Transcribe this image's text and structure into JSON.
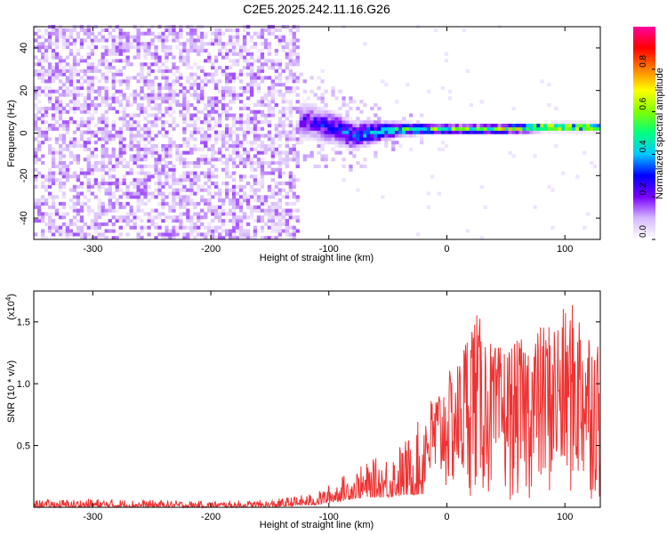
{
  "figure_title": "C2E5.2025.242.11.16.G26",
  "chart_data": [
    {
      "type": "heatmap",
      "title": "C2E5.2025.242.11.16.G26",
      "xlabel": "Height of straight line (km)",
      "ylabel": "Frequency (Hz)",
      "xlim": [
        -350,
        130
      ],
      "ylim": [
        -50,
        50
      ],
      "xticks": [
        -300,
        -200,
        -100,
        0,
        100
      ],
      "xtick_labels": [
        "-300",
        "-200",
        "-100",
        "0",
        "100"
      ],
      "yticks": [
        -40,
        -20,
        0,
        20,
        40
      ],
      "ytick_labels": [
        "-40",
        "-20",
        "0",
        "20",
        "40"
      ],
      "noise_region": {
        "x_from": -350,
        "x_to": -125,
        "description_level": "low (purple speckle)"
      },
      "signal_band": [
        {
          "x": -120,
          "f_center": 5,
          "f_halfwidth": 10,
          "amplitude": 0.25
        },
        {
          "x": -100,
          "f_center": 2,
          "f_halfwidth": 9,
          "amplitude": 0.35
        },
        {
          "x": -80,
          "f_center": -2,
          "f_halfwidth": 8,
          "amplitude": 0.4
        },
        {
          "x": -60,
          "f_center": 0,
          "f_halfwidth": 6,
          "amplitude": 0.45
        },
        {
          "x": -40,
          "f_center": 1,
          "f_halfwidth": 4,
          "amplitude": 0.55
        },
        {
          "x": -20,
          "f_center": 1,
          "f_halfwidth": 3,
          "amplitude": 0.6
        },
        {
          "x": 0,
          "f_center": 1,
          "f_halfwidth": 2.5,
          "amplitude": 0.65
        },
        {
          "x": 40,
          "f_center": 1,
          "f_halfwidth": 2.5,
          "amplitude": 0.7
        },
        {
          "x": 80,
          "f_center": 2,
          "f_halfwidth": 2.5,
          "amplitude": 0.85
        },
        {
          "x": 130,
          "f_center": 2,
          "f_halfwidth": 2.5,
          "amplitude": 0.9
        }
      ],
      "colorbar": {
        "label": "Normalized spectral amplitude",
        "range": [
          0.0,
          1.0
        ],
        "ticks": [
          0.0,
          0.2,
          0.4,
          0.6,
          0.8
        ],
        "tick_labels": [
          "0.0",
          "0.2",
          "0.4",
          "0.6",
          "0.8"
        ],
        "colors": [
          "#ffffff",
          "#d6b8ff",
          "#7a00ff",
          "#0000ff",
          "#00c8ff",
          "#00ff80",
          "#80ff00",
          "#ffff00",
          "#ff8000",
          "#ff0000",
          "#ff00a0"
        ]
      }
    },
    {
      "type": "line",
      "xlabel": "Height of straight line (km)",
      "ylabel": "SNR (10 * v/v)",
      "y_multiplier_label": "(x10",
      "y_multiplier_exp": "4",
      "y_multiplier_close": ")",
      "xlim": [
        -350,
        130
      ],
      "ylim": [
        0,
        17500
      ],
      "xticks": [
        -300,
        -200,
        -100,
        0,
        100
      ],
      "xtick_labels": [
        "-300",
        "-200",
        "-100",
        "0",
        "100"
      ],
      "yticks": [
        5000,
        10000,
        15000
      ],
      "ytick_labels": [
        "0.5",
        "1.0",
        "1.5"
      ],
      "color": "#ee3333",
      "series": [
        {
          "name": "SNR",
          "envelope": [
            {
              "x": -350,
              "low": 0,
              "high": 600
            },
            {
              "x": -300,
              "low": 0,
              "high": 700
            },
            {
              "x": -200,
              "low": 0,
              "high": 500
            },
            {
              "x": -150,
              "low": 0,
              "high": 600
            },
            {
              "x": -110,
              "low": 200,
              "high": 1200
            },
            {
              "x": -90,
              "low": 500,
              "high": 2500
            },
            {
              "x": -70,
              "low": 800,
              "high": 3500
            },
            {
              "x": -50,
              "low": 800,
              "high": 4500
            },
            {
              "x": -30,
              "low": 1000,
              "high": 6000
            },
            {
              "x": -10,
              "low": 1000,
              "high": 9500
            },
            {
              "x": 10,
              "low": 1000,
              "high": 12000
            },
            {
              "x": 22,
              "low": 800,
              "high": 16500
            },
            {
              "x": 40,
              "low": 500,
              "high": 13000
            },
            {
              "x": 60,
              "low": 500,
              "high": 13500
            },
            {
              "x": 90,
              "low": 500,
              "high": 15500
            },
            {
              "x": 110,
              "low": 500,
              "high": 16800
            },
            {
              "x": 130,
              "low": 500,
              "high": 13500
            }
          ]
        }
      ]
    }
  ]
}
